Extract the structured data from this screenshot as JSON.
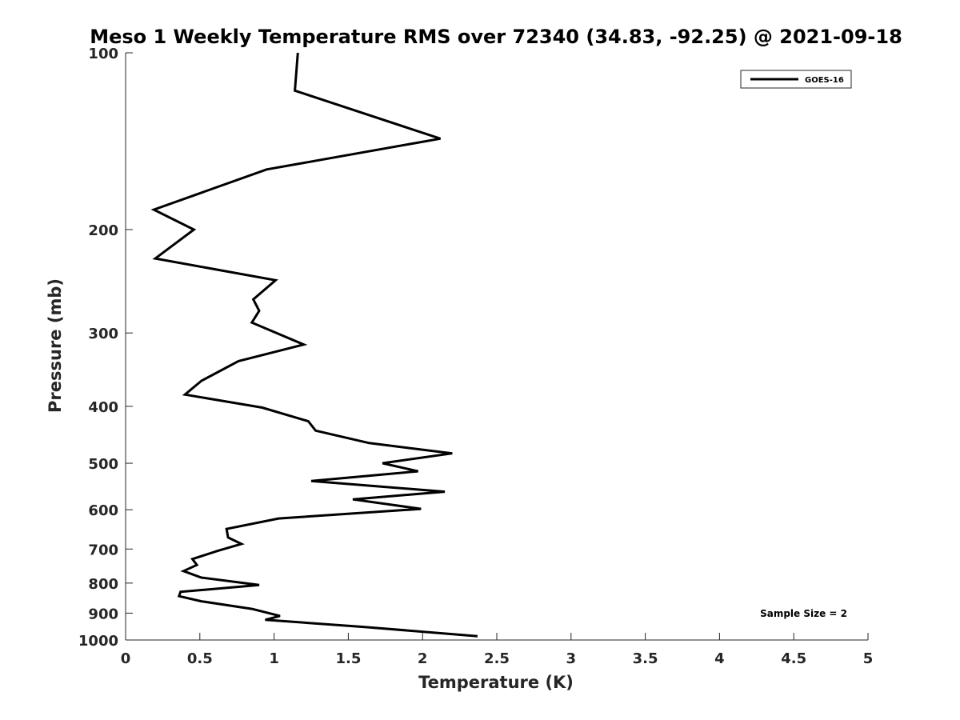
{
  "chart_data": {
    "type": "line",
    "title": "Meso 1 Weekly Temperature RMS over 72340 (34.83, -92.25) @ 2021-09-18",
    "xlabel": "Temperature (K)",
    "ylabel": "Pressure (mb)",
    "xlim": [
      0,
      5
    ],
    "ylim": [
      100,
      1000
    ],
    "yscale": "log",
    "y_reversed": true,
    "grid": false,
    "legend_position": "top-right",
    "x_ticks": [
      "0",
      "0.5",
      "1",
      "1.5",
      "2",
      "2.5",
      "3",
      "3.5",
      "4",
      "4.5",
      "5"
    ],
    "y_ticks": [
      "100",
      "200",
      "300",
      "400",
      "500",
      "600",
      "700",
      "800",
      "900",
      "1000"
    ],
    "annotation": "Sample Size = 2",
    "series": [
      {
        "name": "GOES-16",
        "color": "#000000",
        "x": [
          1.16,
          1.14,
          2.12,
          0.95,
          0.19,
          0.46,
          0.2,
          1.01,
          0.86,
          0.9,
          0.85,
          1.2,
          0.76,
          0.51,
          0.4,
          0.92,
          1.23,
          1.28,
          1.64,
          2.2,
          1.73,
          1.97,
          1.25,
          2.15,
          1.53,
          1.99,
          1.03,
          0.68,
          0.69,
          0.78,
          0.62,
          0.45,
          0.48,
          0.39,
          0.51,
          0.9,
          0.37,
          0.36,
          0.51,
          0.85,
          1.04,
          0.94,
          1.6,
          2.37
        ],
        "y": [
          100,
          116,
          140,
          158,
          185,
          200,
          224,
          244,
          263,
          275,
          288,
          314,
          335,
          362,
          382,
          402,
          424,
          440,
          462,
          481,
          500,
          516,
          536,
          559,
          576,
          598,
          621,
          647,
          669,
          686,
          705,
          728,
          745,
          763,
          783,
          806,
          828,
          842,
          859,
          885,
          910,
          924,
          950,
          985
        ]
      }
    ]
  }
}
